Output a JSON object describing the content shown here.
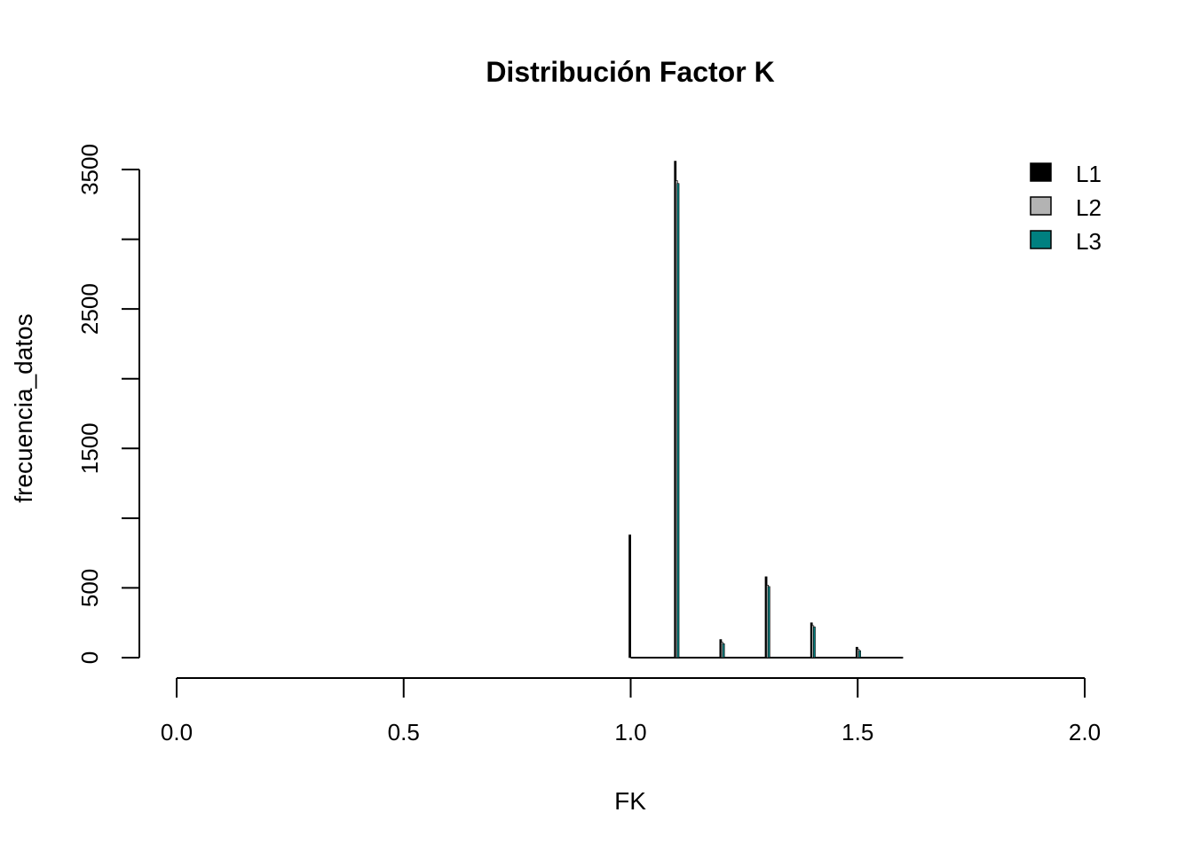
{
  "chart_data": {
    "type": "bar",
    "title": "Distribución Factor K",
    "xlabel": "FK",
    "ylabel": "frecuencia_datos",
    "x_ticks": [
      "0.0",
      "0.5",
      "1.0",
      "1.5",
      "2.0"
    ],
    "y_ticks": [
      "0",
      "500",
      "1500",
      "2500",
      "3500"
    ],
    "xlim": [
      0,
      2
    ],
    "ylim": [
      0,
      3500
    ],
    "grid": false,
    "legend_position": "top-right",
    "categories": [
      1.0,
      1.1,
      1.2,
      1.3,
      1.4,
      1.5
    ],
    "series": [
      {
        "name": "L1",
        "color": "#000000",
        "values": [
          880,
          3560,
          130,
          580,
          250,
          75
        ]
      },
      {
        "name": "L2",
        "color": "#b3b3b3",
        "values": [
          0,
          3420,
          110,
          520,
          230,
          60
        ]
      },
      {
        "name": "L3",
        "color": "#008080",
        "values": [
          0,
          3400,
          100,
          510,
          220,
          50
        ]
      }
    ],
    "baseline_range": [
      1.0,
      1.6
    ]
  }
}
